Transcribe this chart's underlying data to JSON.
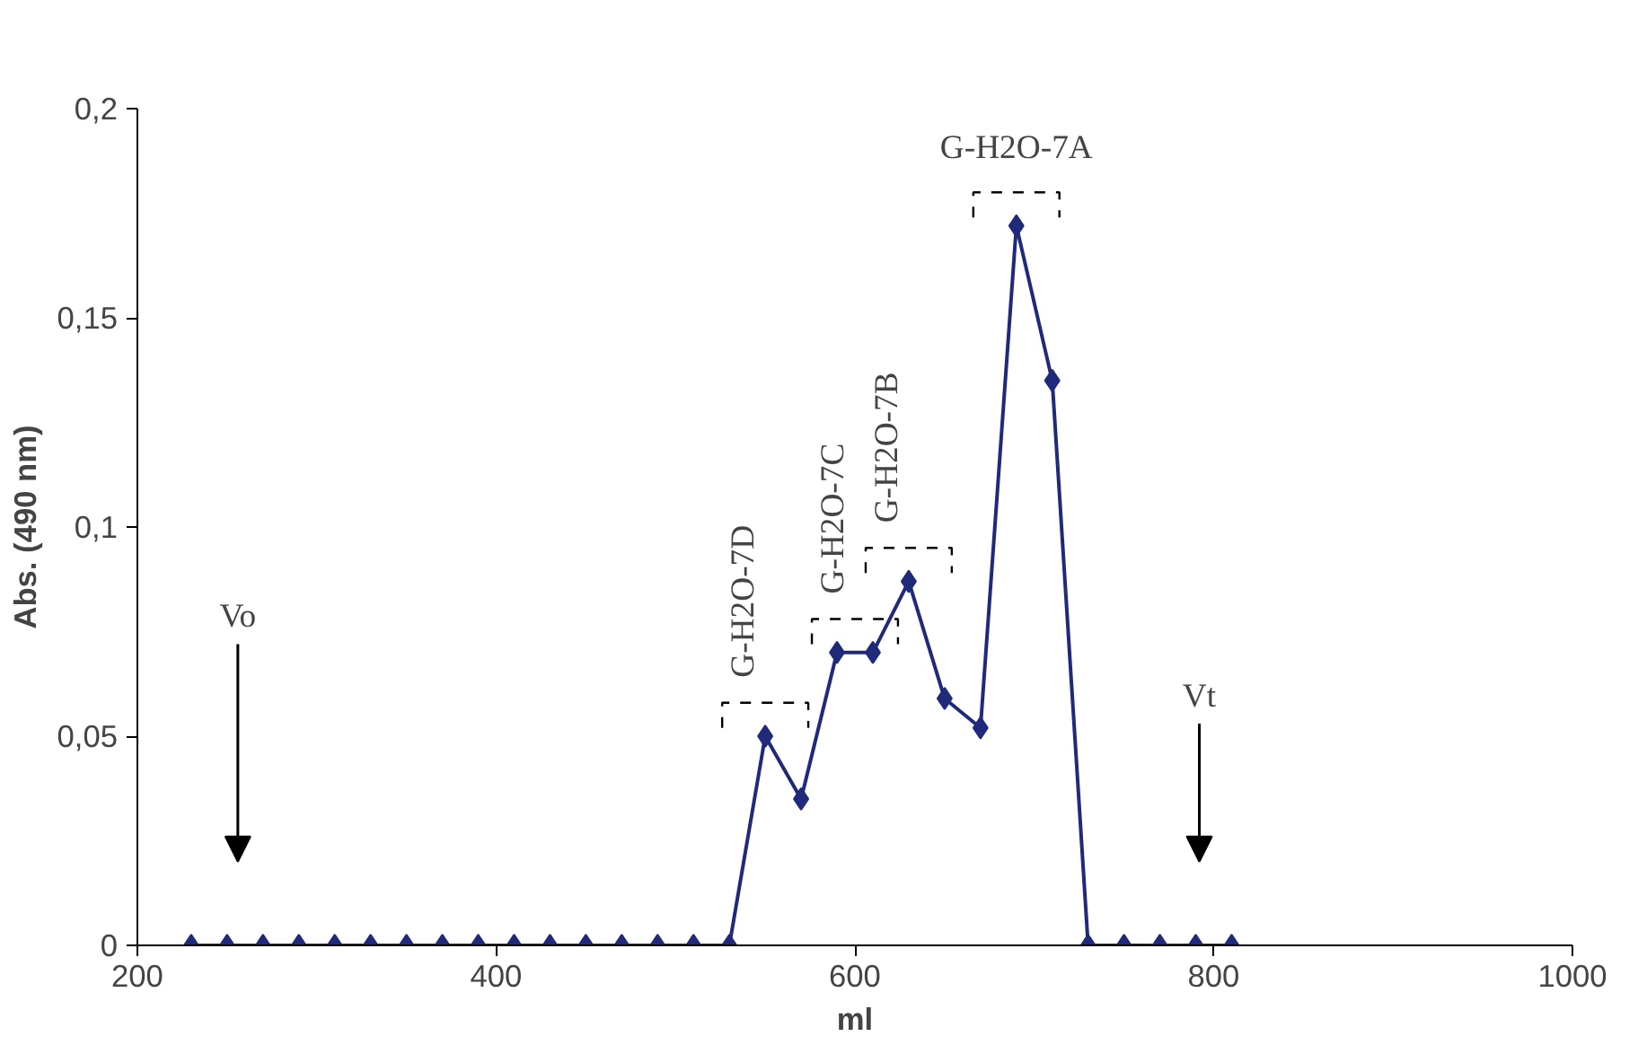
{
  "chart_data": {
    "type": "line",
    "xlabel": "ml",
    "ylabel": "Abs. (490 nm)",
    "x": [
      230,
      250,
      270,
      290,
      310,
      330,
      350,
      370,
      390,
      410,
      430,
      450,
      470,
      490,
      510,
      530,
      550,
      570,
      590,
      610,
      630,
      650,
      670,
      690,
      710,
      730,
      750,
      770,
      790,
      810
    ],
    "series": [
      {
        "color": "#1f2a7a",
        "values": [
          0,
          0,
          0,
          0,
          0,
          0,
          0,
          0,
          0,
          0,
          0,
          0,
          0,
          0,
          0,
          0,
          0.05,
          0.035,
          0.07,
          0.07,
          0.087,
          0.059,
          0.052,
          0.172,
          0.135,
          0,
          0,
          0,
          0,
          0
        ]
      }
    ],
    "marker": "diamond",
    "line_style": "solid",
    "grid": false,
    "xlim": [
      200,
      1000
    ],
    "xticks": [
      200,
      400,
      600,
      800,
      1000
    ],
    "ylim": [
      0,
      0.2
    ],
    "yticks": [
      0,
      {
        "value": 0.05,
        "label": "0,05"
      },
      {
        "value": 0.1,
        "label": "0,1"
      },
      {
        "value": 0.15,
        "label": "0,15"
      },
      {
        "value": 0.2,
        "label": "0,2"
      }
    ],
    "annotations": [
      "Vo",
      "Vt",
      {
        "text": "G-H2O-7D",
        "x": 550,
        "y": 0.05
      },
      {
        "text": "G-H2O-7C",
        "x": 600,
        "y": 0.07
      },
      {
        "text": "G-H2O-7B",
        "x": 630,
        "y": 0.087
      },
      {
        "text": "G-H2O-7A",
        "x": 690,
        "y": 0.172
      }
    ]
  }
}
